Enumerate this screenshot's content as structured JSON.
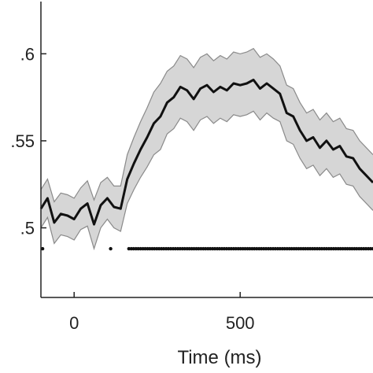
{
  "chart_data": {
    "type": "line",
    "title": "",
    "xlabel": "Time (ms)",
    "ylabel": "",
    "xlim": [
      -100,
      900
    ],
    "ylim": [
      0.46,
      0.63
    ],
    "x_ticks": [
      {
        "value": 0,
        "label": "0"
      },
      {
        "value": 500,
        "label": "500"
      }
    ],
    "y_ticks": [
      {
        "value": 0.5,
        "label": ".5"
      },
      {
        "value": 0.55,
        "label": ".55"
      },
      {
        "value": 0.6,
        "label": ".6"
      }
    ],
    "grid": false,
    "legend": "none",
    "colors": {
      "mean_line": "#111111",
      "band_fill": "#d6d6d6",
      "band_edge": "#8a8a8a",
      "markers": "#111111"
    },
    "series": [
      {
        "x": [
          -100,
          -80,
          -60,
          -40,
          -20,
          0,
          20,
          40,
          60,
          80,
          100,
          120,
          140,
          160,
          180,
          200,
          220,
          240,
          260,
          280,
          300,
          320,
          340,
          360,
          380,
          400,
          420,
          440,
          460,
          480,
          500,
          520,
          540,
          560,
          580,
          600,
          620,
          640,
          660,
          680,
          700,
          720,
          740,
          760,
          780,
          800,
          820,
          840,
          860,
          880,
          900
        ],
        "mean": [
          0.511,
          0.517,
          0.503,
          0.508,
          0.507,
          0.505,
          0.511,
          0.514,
          0.502,
          0.513,
          0.517,
          0.512,
          0.511,
          0.528,
          0.537,
          0.545,
          0.552,
          0.56,
          0.564,
          0.572,
          0.575,
          0.581,
          0.579,
          0.574,
          0.58,
          0.582,
          0.578,
          0.581,
          0.579,
          0.583,
          0.582,
          0.583,
          0.585,
          0.58,
          0.583,
          0.58,
          0.577,
          0.566,
          0.564,
          0.556,
          0.55,
          0.552,
          0.546,
          0.55,
          0.545,
          0.547,
          0.541,
          0.54,
          0.534,
          0.53,
          0.526
        ],
        "upper": [
          0.522,
          0.528,
          0.515,
          0.52,
          0.519,
          0.517,
          0.523,
          0.527,
          0.516,
          0.526,
          0.529,
          0.524,
          0.524,
          0.542,
          0.552,
          0.561,
          0.569,
          0.578,
          0.583,
          0.59,
          0.593,
          0.599,
          0.597,
          0.592,
          0.598,
          0.6,
          0.596,
          0.599,
          0.597,
          0.601,
          0.6,
          0.601,
          0.603,
          0.598,
          0.6,
          0.597,
          0.593,
          0.582,
          0.58,
          0.572,
          0.566,
          0.568,
          0.562,
          0.566,
          0.561,
          0.563,
          0.557,
          0.556,
          0.55,
          0.546,
          0.542
        ],
        "lower": [
          0.5,
          0.506,
          0.491,
          0.496,
          0.495,
          0.493,
          0.499,
          0.501,
          0.488,
          0.5,
          0.505,
          0.5,
          0.498,
          0.514,
          0.522,
          0.529,
          0.535,
          0.542,
          0.545,
          0.554,
          0.557,
          0.563,
          0.561,
          0.556,
          0.562,
          0.564,
          0.56,
          0.563,
          0.561,
          0.565,
          0.564,
          0.565,
          0.567,
          0.562,
          0.566,
          0.563,
          0.561,
          0.55,
          0.548,
          0.54,
          0.534,
          0.536,
          0.53,
          0.534,
          0.529,
          0.531,
          0.525,
          0.524,
          0.518,
          0.514,
          0.51
        ]
      }
    ],
    "significance_markers": {
      "y": 0.488,
      "segments": [
        [
          -95,
          -95
        ],
        [
          110,
          110
        ],
        [
          165,
          900
        ]
      ],
      "step": 7
    }
  }
}
